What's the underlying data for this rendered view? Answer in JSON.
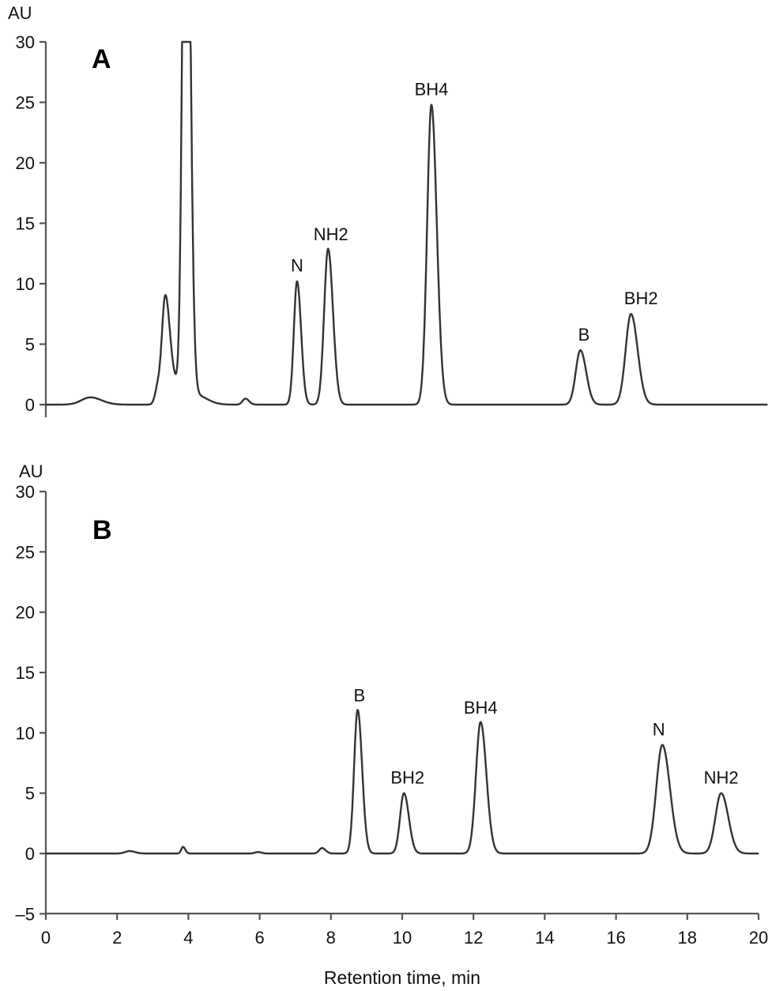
{
  "chart_data": [
    {
      "type": "line",
      "panel": "A",
      "title": "A",
      "xlabel": "",
      "ylabel": "AU",
      "xlim": [
        0,
        20
      ],
      "ylim": [
        0,
        30
      ],
      "yticks": [
        0,
        5,
        10,
        15,
        20,
        25,
        30
      ],
      "xticks_visible": false,
      "grid": false,
      "peaks": [
        {
          "label": "",
          "t": 1.25,
          "height": 0.6,
          "width": 0.25
        },
        {
          "label": "",
          "t": 3.35,
          "height": 8.3,
          "width": 0.09
        },
        {
          "label": "",
          "t": 3.15,
          "height": 1.5,
          "width": 0.08
        },
        {
          "label": "",
          "t": 3.55,
          "height": 2.2,
          "width": 0.12
        },
        {
          "label": "",
          "t": 3.93,
          "height": 60,
          "width": 0.09
        },
        {
          "label": "",
          "t": 4.2,
          "height": 0.8,
          "width": 0.25
        },
        {
          "label": "",
          "t": 5.6,
          "height": 0.5,
          "width": 0.08
        },
        {
          "label": "N",
          "t": 7.05,
          "height": 10.2,
          "width": 0.09
        },
        {
          "label": "NH2",
          "t": 7.92,
          "height": 12.9,
          "width": 0.11
        },
        {
          "label": "BH4",
          "t": 10.82,
          "height": 24.8,
          "width": 0.12
        },
        {
          "label": "B",
          "t": 15.0,
          "height": 4.5,
          "width": 0.13
        },
        {
          "label": "BH2",
          "t": 16.42,
          "height": 7.5,
          "width": 0.15
        }
      ],
      "labels": [
        {
          "text": "N",
          "t": 7.05,
          "y": 11.0
        },
        {
          "text": "NH2",
          "t": 8.0,
          "y": 13.6
        },
        {
          "text": "BH4",
          "t": 10.82,
          "y": 25.6
        },
        {
          "text": "B",
          "t": 15.1,
          "y": 5.3
        },
        {
          "text": "BH2",
          "t": 16.7,
          "y": 8.3
        }
      ]
    },
    {
      "type": "line",
      "panel": "B",
      "title": "B",
      "xlabel": "Retention time, min",
      "ylabel": "AU",
      "xlim": [
        0,
        20
      ],
      "ylim": [
        -5,
        30
      ],
      "yticks": [
        -5,
        0,
        5,
        10,
        15,
        20,
        25,
        30
      ],
      "xticks": [
        0,
        2,
        4,
        6,
        8,
        10,
        12,
        14,
        16,
        18,
        20
      ],
      "grid": false,
      "peaks": [
        {
          "label": "",
          "t": 2.35,
          "height": 0.2,
          "width": 0.12
        },
        {
          "label": "",
          "t": 3.85,
          "height": 0.55,
          "width": 0.05
        },
        {
          "label": "",
          "t": 5.95,
          "height": 0.12,
          "width": 0.08
        },
        {
          "label": "",
          "t": 7.75,
          "height": 0.45,
          "width": 0.08
        },
        {
          "label": "B",
          "t": 8.75,
          "height": 11.9,
          "width": 0.1
        },
        {
          "label": "BH2",
          "t": 10.05,
          "height": 5.0,
          "width": 0.11
        },
        {
          "label": "BH4",
          "t": 12.2,
          "height": 10.9,
          "width": 0.13
        },
        {
          "label": "N",
          "t": 17.3,
          "height": 9.0,
          "width": 0.17
        },
        {
          "label": "NH2",
          "t": 18.95,
          "height": 5.0,
          "width": 0.16
        }
      ],
      "labels": [
        {
          "text": "B",
          "t": 8.8,
          "y": 12.6
        },
        {
          "text": "BH2",
          "t": 10.15,
          "y": 5.8
        },
        {
          "text": "BH4",
          "t": 12.2,
          "y": 11.6
        },
        {
          "text": "N",
          "t": 17.2,
          "y": 9.8
        },
        {
          "text": "NH2",
          "t": 18.95,
          "y": 5.8
        }
      ]
    }
  ],
  "panels": {
    "a": {
      "letter": "A",
      "au": "AU"
    },
    "b": {
      "letter": "B",
      "au": "AU"
    }
  },
  "axis": {
    "x_title": "Retention time, min"
  }
}
